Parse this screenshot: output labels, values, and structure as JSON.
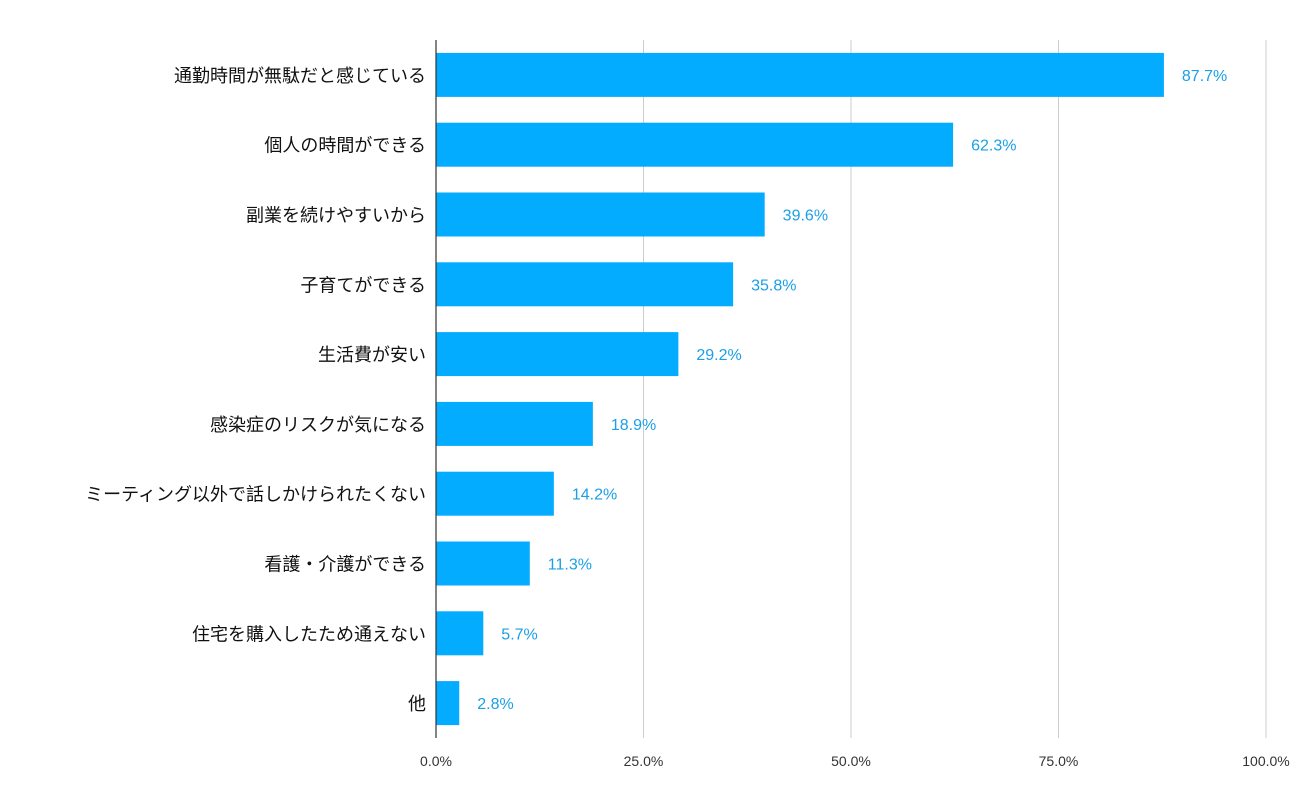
{
  "chart_data": {
    "type": "bar",
    "orientation": "horizontal",
    "categories": [
      "通勤時間が無駄だと感じている",
      "個人の時間ができる",
      "副業を続けやすいから",
      "子育てができる",
      "生活費が安い",
      "感染症のリスクが気になる",
      "ミーティング以外で話しかけられたくない",
      "看護・介護ができる",
      "住宅を購入したため通えない",
      "他"
    ],
    "values": [
      87.7,
      62.3,
      39.6,
      35.8,
      29.2,
      18.9,
      14.2,
      11.3,
      5.7,
      2.8
    ],
    "value_labels": [
      "87.7%",
      "62.3%",
      "39.6%",
      "35.8%",
      "29.2%",
      "18.9%",
      "14.2%",
      "11.3%",
      "5.7%",
      "2.8%"
    ],
    "x_ticks": [
      0,
      25,
      50,
      75,
      100
    ],
    "x_tick_labels": [
      "0.0%",
      "25.0%",
      "50.0%",
      "75.0%",
      "100.0%"
    ],
    "xlim": [
      0,
      100
    ],
    "grid": true,
    "legend": "none",
    "colors": {
      "bar": "#03acff",
      "value_label": "#1a9fe6",
      "grid": "#cccccc",
      "axis": "#333333"
    }
  }
}
